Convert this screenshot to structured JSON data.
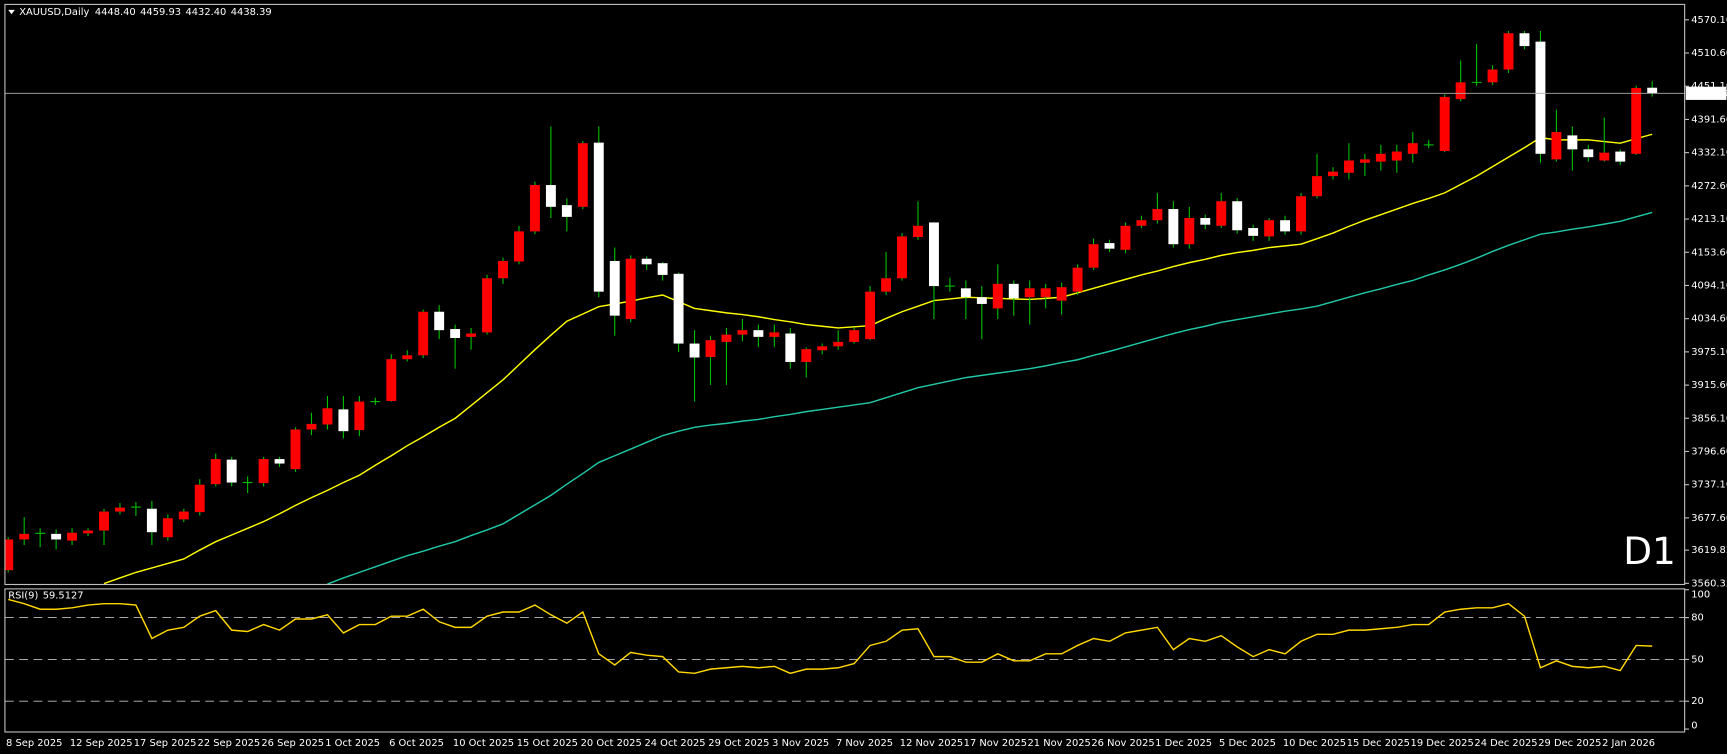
{
  "chart_data": [
    {
      "type": "candlestick",
      "title": "XAUUSD,Daily",
      "ohlc_labels": [
        "4448.40",
        "4459.93",
        "4432.40",
        "4438.39"
      ],
      "annotation": "D1",
      "categories": [
        "8 Sep 2025",
        null,
        null,
        null,
        "12 Sep 2025",
        null,
        null,
        null,
        "17 Sep 2025",
        null,
        null,
        null,
        "22 Sep 2025",
        null,
        null,
        null,
        "26 Sep 2025",
        null,
        null,
        null,
        "1 Oct 2025",
        null,
        null,
        null,
        "6 Oct 2025",
        null,
        null,
        null,
        "10 Oct 2025",
        null,
        null,
        null,
        "15 Oct 2025",
        null,
        null,
        null,
        "20 Oct 2025",
        null,
        null,
        null,
        "24 Oct 2025",
        null,
        null,
        null,
        "29 Oct 2025",
        null,
        null,
        null,
        "3 Nov 2025",
        null,
        null,
        null,
        "7 Nov 2025",
        null,
        null,
        null,
        "12 Nov 2025",
        null,
        null,
        null,
        "17 Nov 2025",
        null,
        null,
        null,
        "21 Nov 2025",
        null,
        null,
        null,
        "26 Nov 2025",
        null,
        null,
        null,
        "1 Dec 2025",
        null,
        null,
        null,
        "5 Dec 2025",
        null,
        null,
        null,
        "10 Dec 2025",
        null,
        null,
        null,
        "15 Dec 2025",
        null,
        null,
        null,
        "19 Dec 2025",
        null,
        null,
        null,
        "24 Dec 2025",
        null,
        null,
        null,
        "29 Dec 2025",
        null,
        null,
        null,
        "2 Jan 2026",
        null,
        null,
        null
      ],
      "open": [
        3584,
        3639,
        3650,
        3649,
        3637,
        3650,
        3655,
        3689,
        3697,
        3694,
        3643,
        3675,
        3688,
        3738,
        3782,
        3741,
        3740,
        3783,
        3765,
        3836,
        3845,
        3872,
        3835,
        3886,
        3887,
        3962,
        3969,
        4047,
        4016,
        4002,
        4010,
        4107,
        4137,
        4191,
        4274,
        4238,
        4235,
        4350,
        4138,
        4034,
        4142,
        4134,
        4115,
        3990,
        3966,
        3993,
        4006,
        4014,
        4002,
        4008,
        3957,
        3978,
        3985,
        3993,
        3998,
        4083,
        4107,
        4181,
        4207,
        4093,
        4089,
        4073,
        4053,
        4097,
        4073,
        4073,
        4067,
        4083,
        4126,
        4170,
        4158,
        4201,
        4211,
        4231,
        4168,
        4215,
        4201,
        4245,
        4197,
        4182,
        4211,
        4191,
        4254,
        4290,
        4296,
        4314,
        4316,
        4318,
        4330,
        4346,
        4335,
        4428,
        4458,
        4458,
        4481,
        4546,
        4531,
        4320,
        4363,
        4338,
        4318,
        4334,
        4330,
        4448.4
      ],
      "high": [
        3643,
        3679,
        3659,
        3657,
        3659,
        3659,
        3694,
        3704,
        3706,
        3708,
        3684,
        3694,
        3747,
        3793,
        3787,
        3752,
        3787,
        3787,
        3840,
        3866,
        3896,
        3896,
        3896,
        3893,
        3971,
        3978,
        4051,
        4059,
        4024,
        4018,
        4113,
        4144,
        4201,
        4280,
        4379,
        4250,
        4353,
        4379,
        4162,
        4148,
        4146,
        4136,
        4117,
        4014,
        4004,
        4018,
        4034,
        4024,
        4024,
        4018,
        3983,
        3990,
        4014,
        4018,
        4093,
        4154,
        4188,
        4245,
        4207,
        4108,
        4103,
        4093,
        4132,
        4103,
        4103,
        4097,
        4099,
        4132,
        4178,
        4176,
        4207,
        4219,
        4260,
        4245,
        4235,
        4221,
        4260,
        4251,
        4203,
        4215,
        4219,
        4260,
        4330,
        4306,
        4349,
        4330,
        4346,
        4346,
        4369,
        4355,
        4436,
        4497,
        4527,
        4489,
        4550,
        4550,
        4550,
        4409,
        4379,
        4346,
        4395,
        4338,
        4452,
        4459.93
      ],
      "low": [
        3580,
        3629,
        3625,
        3621,
        3629,
        3645,
        3629,
        3684,
        3681,
        3629,
        3637,
        3670,
        3682,
        3734,
        3734,
        3722,
        3734,
        3769,
        3760,
        3826,
        3836,
        3820,
        3824,
        3880,
        3886,
        3958,
        3964,
        3998,
        3945,
        3979,
        4006,
        4097,
        4132,
        4186,
        4215,
        4191,
        4231,
        4073,
        4004,
        4028,
        4122,
        4103,
        3975,
        3886,
        3916,
        3916,
        3994,
        3984,
        3984,
        3945,
        3929,
        3971,
        3979,
        3990,
        3996,
        4077,
        4103,
        4176,
        4034,
        4083,
        4034,
        3998,
        4034,
        4040,
        4024,
        4053,
        4042,
        4077,
        4122,
        4154,
        4152,
        4197,
        4205,
        4162,
        4160,
        4195,
        4197,
        4187,
        4174,
        4174,
        4185,
        4185,
        4250,
        4284,
        4284,
        4290,
        4300,
        4296,
        4314,
        4340,
        4333,
        4424,
        4452,
        4454,
        4475,
        4517,
        4314,
        4316,
        4300,
        4316,
        4316,
        4310,
        4328,
        4432.4
      ],
      "close": [
        3639,
        3649,
        3650,
        3639,
        3651,
        3655,
        3689,
        3696,
        3697,
        3652,
        3677,
        3689,
        3737,
        3783,
        3741,
        3741,
        3783,
        3775,
        3836,
        3846,
        3874,
        3833,
        3886,
        3886,
        3962,
        3969,
        4047,
        4014,
        4000,
        4008,
        4107,
        4138,
        4191,
        4274,
        4235,
        4217,
        4349,
        4083,
        4040,
        4142,
        4132,
        4113,
        3990,
        3965,
        3996,
        4006,
        4014,
        4002,
        4010,
        3957,
        3980,
        3985,
        3993,
        4014,
        4083,
        4107,
        4182,
        4201,
        4093,
        4093,
        4073,
        4061,
        4097,
        4071,
        4089,
        4089,
        4091,
        4126,
        4168,
        4160,
        4201,
        4211,
        4231,
        4168,
        4215,
        4203,
        4245,
        4193,
        4183,
        4211,
        4191,
        4254,
        4290,
        4298,
        4318,
        4320,
        4330,
        4334,
        4349,
        4346,
        4432,
        4458,
        4458,
        4481,
        4546,
        4523,
        4330,
        4369,
        4338,
        4324,
        4332,
        4316,
        4448,
        4438.39
      ],
      "bull_color": "#ff0000",
      "bear_color": "#ffffff",
      "wick_color": "#00c000",
      "series": [
        {
          "color": "#ffff00",
          "values": [
            null,
            null,
            null,
            null,
            null,
            null,
            3560,
            3570,
            3580,
            3588,
            3596,
            3604,
            3620,
            3635,
            3647,
            3659,
            3671,
            3685,
            3700,
            3714,
            3727,
            3741,
            3754,
            3772,
            3789,
            3807,
            3823,
            3840,
            3856,
            3879,
            3902,
            3925,
            3952,
            3979,
            4005,
            4030,
            4043,
            4056,
            4061,
            4066,
            4072,
            4077,
            4065,
            4053,
            4049,
            4045,
            4042,
            4038,
            4033,
            4029,
            4024,
            4021,
            4018,
            4020,
            4022,
            4035,
            4047,
            4057,
            4067,
            4070,
            4073,
            4072,
            4071,
            4070,
            4069,
            4071,
            4073,
            4081,
            4089,
            4097,
            4105,
            4113,
            4120,
            4128,
            4135,
            4141,
            4148,
            4153,
            4157,
            4162,
            4165,
            4168,
            4178,
            4188,
            4200,
            4211,
            4221,
            4231,
            4241,
            4250,
            4260,
            4275,
            4290,
            4307,
            4324,
            4341,
            4359,
            4355,
            4355,
            4355,
            4352,
            4349,
            4357,
            4365
          ]
        },
        {
          "color": "#20c8a8",
          "values": [
            null,
            null,
            null,
            null,
            null,
            null,
            null,
            null,
            null,
            null,
            null,
            null,
            null,
            null,
            null,
            null,
            null,
            null,
            null,
            null,
            3559,
            3570,
            3580,
            3590,
            3600,
            3610,
            3618,
            3627,
            3635,
            3646,
            3656,
            3667,
            3684,
            3701,
            3718,
            3738,
            3757,
            3777,
            3789,
            3801,
            3813,
            3825,
            3833,
            3840,
            3844,
            3847,
            3851,
            3854,
            3859,
            3863,
            3868,
            3872,
            3876,
            3880,
            3884,
            3893,
            3902,
            3911,
            3917,
            3923,
            3929,
            3933,
            3937,
            3941,
            3945,
            3950,
            3956,
            3961,
            3969,
            3976,
            3984,
            3992,
            4000,
            4008,
            4015,
            4021,
            4028,
            4033,
            4038,
            4043,
            4048,
            4052,
            4057,
            4065,
            4073,
            4081,
            4088,
            4096,
            4103,
            4113,
            4122,
            4132,
            4143,
            4155,
            4166,
            4176,
            4186,
            4190,
            4195,
            4199,
            4204,
            4209,
            4217,
            4225
          ]
        }
      ],
      "ylim": [
        3558.3,
        4597.7
      ],
      "yticks": [
        {
          "value": 4570.1,
          "label": "4570.10"
        },
        {
          "value": 4510.6,
          "label": "4510.60"
        },
        {
          "value": 4451.1,
          "label": "4451.10"
        },
        {
          "value": 4391.6,
          "label": "4391.60"
        },
        {
          "value": 4332.1,
          "label": "4332.10"
        },
        {
          "value": 4272.6,
          "label": "4272.60"
        },
        {
          "value": 4213.1,
          "label": "4213.10"
        },
        {
          "value": 4153.6,
          "label": "4153.60"
        },
        {
          "value": 4094.1,
          "label": "4094.10"
        },
        {
          "value": 4034.6,
          "label": "4034.60"
        },
        {
          "value": 3975.1,
          "label": "3975.10"
        },
        {
          "value": 3915.6,
          "label": "3915.60"
        },
        {
          "value": 3856.1,
          "label": "3856.10"
        },
        {
          "value": 3796.6,
          "label": "3796.60"
        },
        {
          "value": 3737.1,
          "label": "3737.10"
        },
        {
          "value": 3677.6,
          "label": "3677.60"
        },
        {
          "value": 3619.85,
          "label": "3619.85"
        },
        {
          "value": 3560.35,
          "label": "3560.35"
        }
      ]
    },
    {
      "type": "line",
      "title": "RSI(9)",
      "color": "#ffd700",
      "values": [
        93,
        90,
        86,
        86,
        87,
        89,
        90,
        90,
        89,
        65,
        71,
        73,
        81,
        85,
        71,
        70,
        75,
        71,
        79,
        79,
        82,
        69,
        75,
        75,
        81,
        81,
        86,
        77,
        73,
        73,
        81,
        84,
        84,
        89,
        82,
        76,
        84,
        54,
        46,
        55,
        53,
        52,
        41,
        40,
        43,
        44,
        45,
        44,
        45,
        40,
        43,
        43,
        44,
        47,
        60,
        63,
        71,
        72,
        52,
        52,
        48,
        48,
        54,
        49,
        49,
        54,
        54,
        60,
        65,
        63,
        69,
        71,
        73,
        57,
        65,
        63,
        67,
        59,
        52,
        57,
        54,
        63,
        68,
        68,
        71,
        71,
        72,
        73,
        75,
        75,
        84,
        86,
        87,
        87,
        90,
        81,
        44,
        49,
        45,
        44,
        45,
        42,
        60,
        59.5127
      ],
      "ylim": [
        -2.1,
        100.6
      ],
      "yticks": [
        0,
        20,
        50,
        80,
        100
      ],
      "levels": [
        20,
        50,
        80
      ]
    }
  ]
}
